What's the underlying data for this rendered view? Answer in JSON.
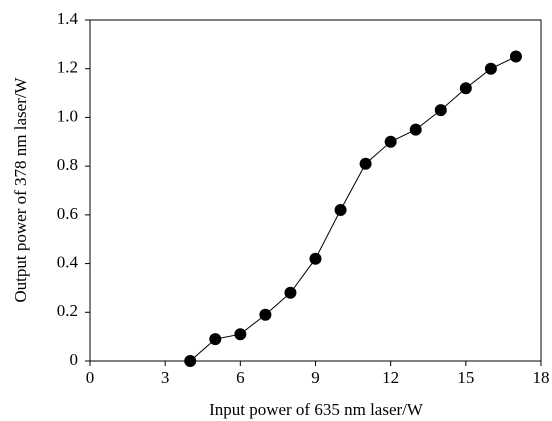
{
  "chart_data": {
    "type": "line",
    "xlabel": "Input power of 635 nm laser/W",
    "ylabel": "Output power of 378 nm laser/W",
    "x": [
      4,
      5,
      6,
      7,
      8,
      9,
      10,
      11,
      12,
      13,
      14,
      15,
      16,
      17
    ],
    "series": [
      {
        "color": "#000000",
        "marker": "circle",
        "values": [
          0,
          0.09,
          0.11,
          0.19,
          0.28,
          0.42,
          0.62,
          0.81,
          0.9,
          0.95,
          1.03,
          1.12,
          1.2,
          1.25
        ]
      }
    ],
    "xlim": [
      0,
      18
    ],
    "xticks": [
      0,
      3,
      6,
      9,
      12,
      15,
      18
    ],
    "ylim": [
      0,
      1.4
    ],
    "yticks": [
      0,
      0.2,
      0.4,
      0.6,
      0.8,
      {
        "value": 1,
        "label": "1.0"
      },
      1.2,
      1.4
    ],
    "grid": false
  }
}
